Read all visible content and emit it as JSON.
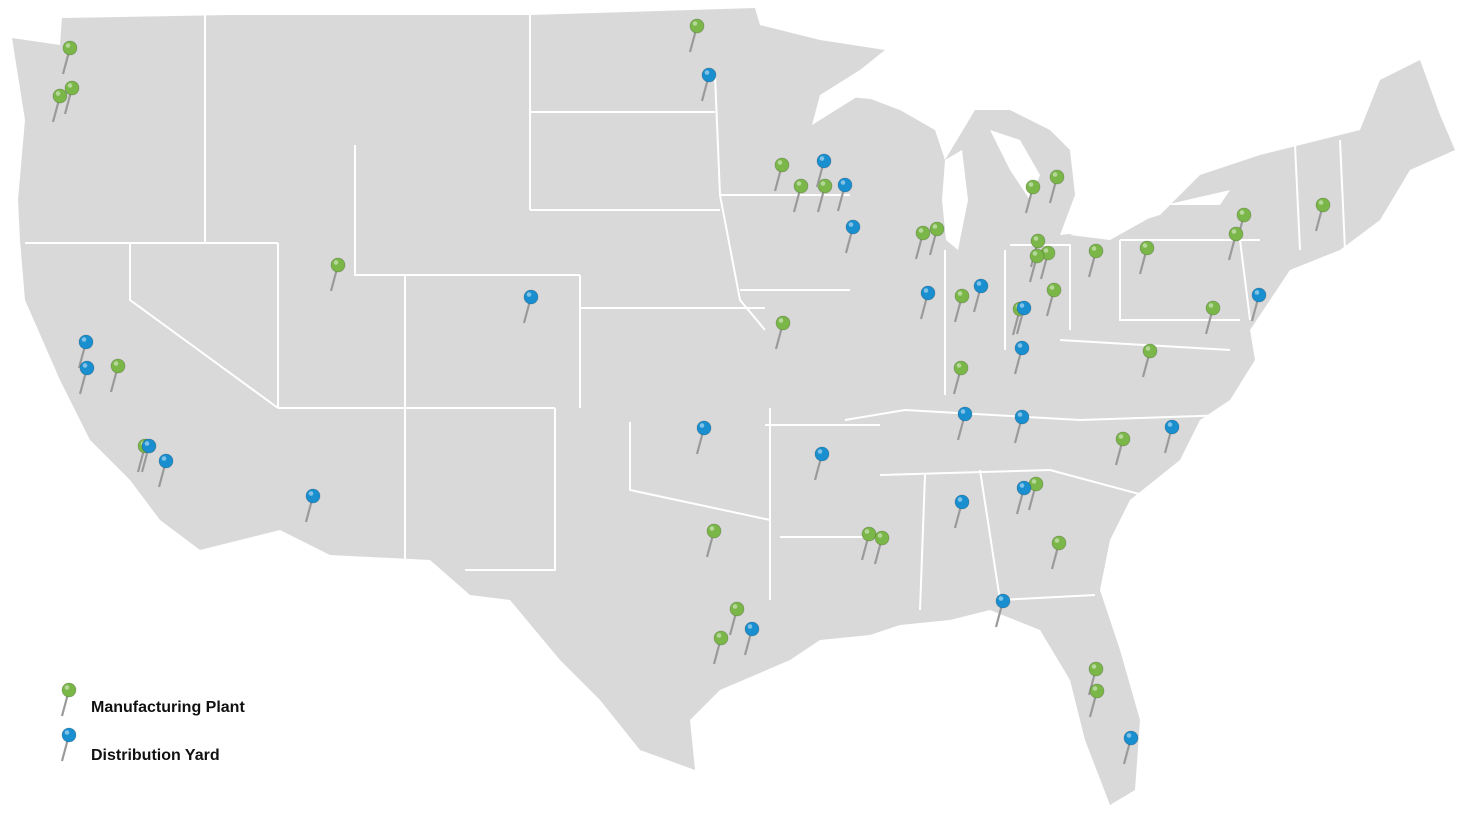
{
  "colors": {
    "land": "#d9d9d9",
    "border": "#ffffff",
    "manufacturing": "#7ab648",
    "distribution": "#1a8fd0",
    "needle": "#9a9a9a"
  },
  "legend": {
    "manufacturing_label": "Manufacturing Plant",
    "distribution_label": "Distribution Yard"
  },
  "pins": {
    "manufacturing": [
      "WA",
      "WA",
      "WA",
      "CA",
      "CA",
      "UT",
      "MN",
      "IA",
      "IA",
      "IA",
      "MO",
      "IL",
      "IL",
      "IN",
      "IN",
      "MI",
      "MI",
      "OH",
      "OH",
      "OH",
      "OH",
      "OH",
      "OH",
      "PA",
      "NY",
      "NY",
      "NH",
      "MD",
      "VA",
      "NC",
      "GA",
      "GA",
      "MS",
      "MS",
      "TX",
      "TX",
      "TX",
      "FL",
      "FL"
    ],
    "distribution": [
      "MN",
      "WI",
      "WI",
      "IA",
      "CO",
      "CA",
      "CA",
      "CA",
      "CA",
      "AZ",
      "OK",
      "AR",
      "IL",
      "IN",
      "OH",
      "KY",
      "TN",
      "TN",
      "NC",
      "GA",
      "AL",
      "FL",
      "FL",
      "TX",
      "NJ"
    ]
  }
}
